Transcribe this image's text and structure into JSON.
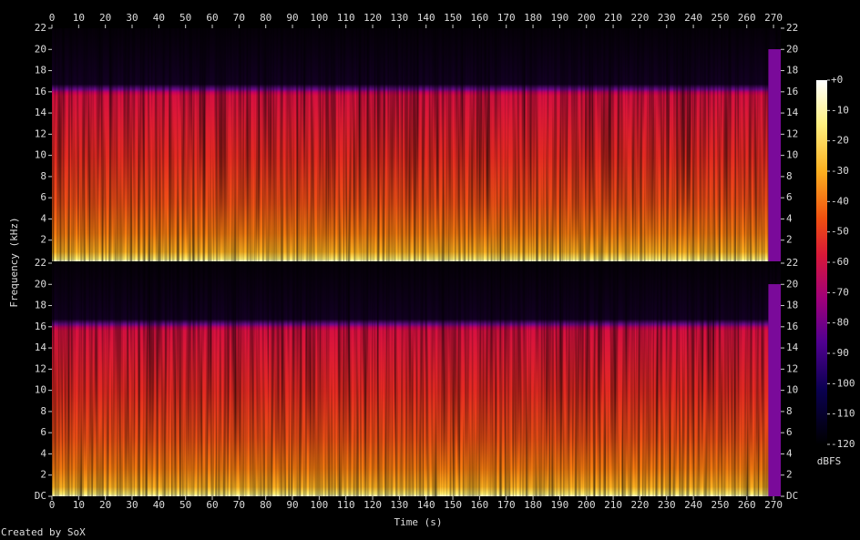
{
  "chart_data": {
    "type": "spectrogram",
    "xlabel": "Time (s)",
    "ylabel": "Frequency (kHz)",
    "xlim": [
      0,
      272.7
    ],
    "xticks": [
      0,
      10,
      20,
      30,
      40,
      50,
      60,
      70,
      80,
      90,
      100,
      110,
      120,
      130,
      140,
      150,
      160,
      170,
      180,
      190,
      200,
      210,
      220,
      230,
      240,
      250,
      260,
      270
    ],
    "panels": [
      {
        "ylim": [
          0,
          22
        ],
        "yticks": [
          2,
          4,
          6,
          8,
          10,
          12,
          14,
          16,
          18,
          20,
          22
        ]
      },
      {
        "ylim": [
          0,
          22
        ],
        "yticks": [
          {
            "value": 0,
            "label": "DC"
          },
          2,
          4,
          6,
          8,
          10,
          12,
          14,
          16,
          18,
          20,
          22
        ]
      }
    ],
    "colorbar": {
      "label": "dBFS",
      "clim": [
        -120,
        0
      ],
      "ticks": [
        {
          "value": 0,
          "label": "+0"
        },
        -10,
        -20,
        -30,
        -40,
        -50,
        -60,
        -70,
        -80,
        -90,
        -100,
        -110,
        -120
      ]
    },
    "footer": "Created by SoX"
  }
}
